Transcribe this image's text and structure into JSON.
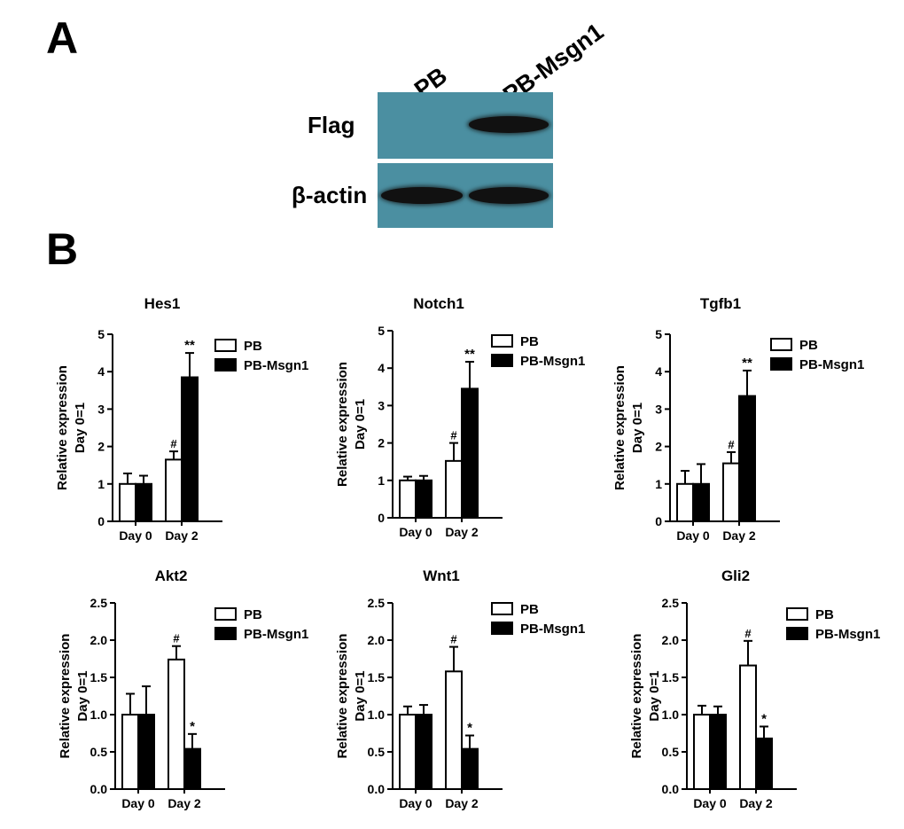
{
  "figure": {
    "panel_a_letter": "A",
    "panel_b_letter": "B",
    "western_blot": {
      "lanes": [
        "PB",
        "PB-Msgn1"
      ],
      "rows": [
        {
          "label": "Flag",
          "bands": [
            false,
            true
          ]
        },
        {
          "label": "β-actin",
          "bands": [
            true,
            true
          ]
        }
      ],
      "membrane_color": "#4b8fa1",
      "band_color": "#111111"
    }
  },
  "chart_data": [
    {
      "type": "bar",
      "title": "Hes1",
      "categories": [
        "Day 0",
        "Day 2"
      ],
      "ylabel": [
        "Relative expression",
        "Day 0=1"
      ],
      "ylim": [
        0,
        5
      ],
      "yticks": [
        "0",
        "1",
        "2",
        "3",
        "4",
        "5"
      ],
      "legend": [
        "PB",
        "PB-Msgn1"
      ],
      "series": [
        {
          "name": "PB",
          "fill": "#ffffff",
          "values": [
            1.0,
            1.65
          ],
          "errors": [
            0.28,
            0.22
          ],
          "marks": [
            "",
            "#"
          ]
        },
        {
          "name": "PB-Msgn1",
          "fill": "#000000",
          "values": [
            1.0,
            3.85
          ],
          "errors": [
            0.22,
            0.65
          ],
          "marks": [
            "",
            "**"
          ]
        }
      ]
    },
    {
      "type": "bar",
      "title": "Notch1",
      "categories": [
        "Day 0",
        "Day 2"
      ],
      "ylabel": [
        "Relative expression",
        "Day 0=1"
      ],
      "ylim": [
        0,
        5
      ],
      "yticks": [
        "0",
        "1",
        "2",
        "3",
        "4",
        "5"
      ],
      "legend": [
        "PB",
        "PB-Msgn1"
      ],
      "series": [
        {
          "name": "PB",
          "fill": "#ffffff",
          "values": [
            1.0,
            1.52
          ],
          "errors": [
            0.1,
            0.48
          ],
          "marks": [
            "",
            "#"
          ]
        },
        {
          "name": "PB-Msgn1",
          "fill": "#000000",
          "values": [
            1.0,
            3.45
          ],
          "errors": [
            0.12,
            0.72
          ],
          "marks": [
            "",
            "**"
          ]
        }
      ]
    },
    {
      "type": "bar",
      "title": "Tgfb1",
      "categories": [
        "Day 0",
        "Day 2"
      ],
      "ylabel": [
        "Relative expression",
        "Day 0=1"
      ],
      "ylim": [
        0,
        5
      ],
      "yticks": [
        "0",
        "1",
        "2",
        "3",
        "4",
        "5"
      ],
      "legend": [
        "PB",
        "PB-Msgn1"
      ],
      "series": [
        {
          "name": "PB",
          "fill": "#ffffff",
          "values": [
            1.0,
            1.55
          ],
          "errors": [
            0.35,
            0.3
          ],
          "marks": [
            "",
            "#"
          ]
        },
        {
          "name": "PB-Msgn1",
          "fill": "#000000",
          "values": [
            1.0,
            3.35
          ],
          "errors": [
            0.53,
            0.68
          ],
          "marks": [
            "",
            "**"
          ]
        }
      ]
    },
    {
      "type": "bar",
      "title": "Akt2",
      "categories": [
        "Day 0",
        "Day 2"
      ],
      "ylabel": [
        "Relative expression",
        "Day 0=1"
      ],
      "ylim": [
        0,
        2.5
      ],
      "yticks": [
        "0.0",
        "0.5",
        "1.0",
        "1.5",
        "2.0",
        "2.5"
      ],
      "legend": [
        "PB",
        "PB-Msgn1"
      ],
      "series": [
        {
          "name": "PB",
          "fill": "#ffffff",
          "values": [
            1.0,
            1.74
          ],
          "errors": [
            0.28,
            0.18
          ],
          "marks": [
            "",
            "#"
          ]
        },
        {
          "name": "PB-Msgn1",
          "fill": "#000000",
          "values": [
            1.0,
            0.54
          ],
          "errors": [
            0.38,
            0.2
          ],
          "marks": [
            "",
            "*"
          ]
        }
      ]
    },
    {
      "type": "bar",
      "title": "Wnt1",
      "categories": [
        "Day 0",
        "Day 2"
      ],
      "ylabel": [
        "Relative expression",
        "Day 0=1"
      ],
      "ylim": [
        0,
        2.5
      ],
      "yticks": [
        "0.0",
        "0.5",
        "1.0",
        "1.5",
        "2.0",
        "2.5"
      ],
      "legend": [
        "PB",
        "PB-Msgn1"
      ],
      "series": [
        {
          "name": "PB",
          "fill": "#ffffff",
          "values": [
            1.0,
            1.58
          ],
          "errors": [
            0.11,
            0.33
          ],
          "marks": [
            "",
            "#"
          ]
        },
        {
          "name": "PB-Msgn1",
          "fill": "#000000",
          "values": [
            1.0,
            0.54
          ],
          "errors": [
            0.13,
            0.18
          ],
          "marks": [
            "",
            "*"
          ]
        }
      ]
    },
    {
      "type": "bar",
      "title": "Gli2",
      "categories": [
        "Day 0",
        "Day 2"
      ],
      "ylabel": [
        "Relative expression",
        "Day 0=1"
      ],
      "ylim": [
        0,
        2.5
      ],
      "yticks": [
        "0.0",
        "0.5",
        "1.0",
        "1.5",
        "2.0",
        "2.5"
      ],
      "legend": [
        "PB",
        "PB-Msgn1"
      ],
      "series": [
        {
          "name": "PB",
          "fill": "#ffffff",
          "values": [
            1.0,
            1.66
          ],
          "errors": [
            0.12,
            0.33
          ],
          "marks": [
            "",
            "#"
          ]
        },
        {
          "name": "PB-Msgn1",
          "fill": "#000000",
          "values": [
            1.0,
            0.68
          ],
          "errors": [
            0.11,
            0.16
          ],
          "marks": [
            "",
            "*"
          ]
        }
      ]
    }
  ]
}
